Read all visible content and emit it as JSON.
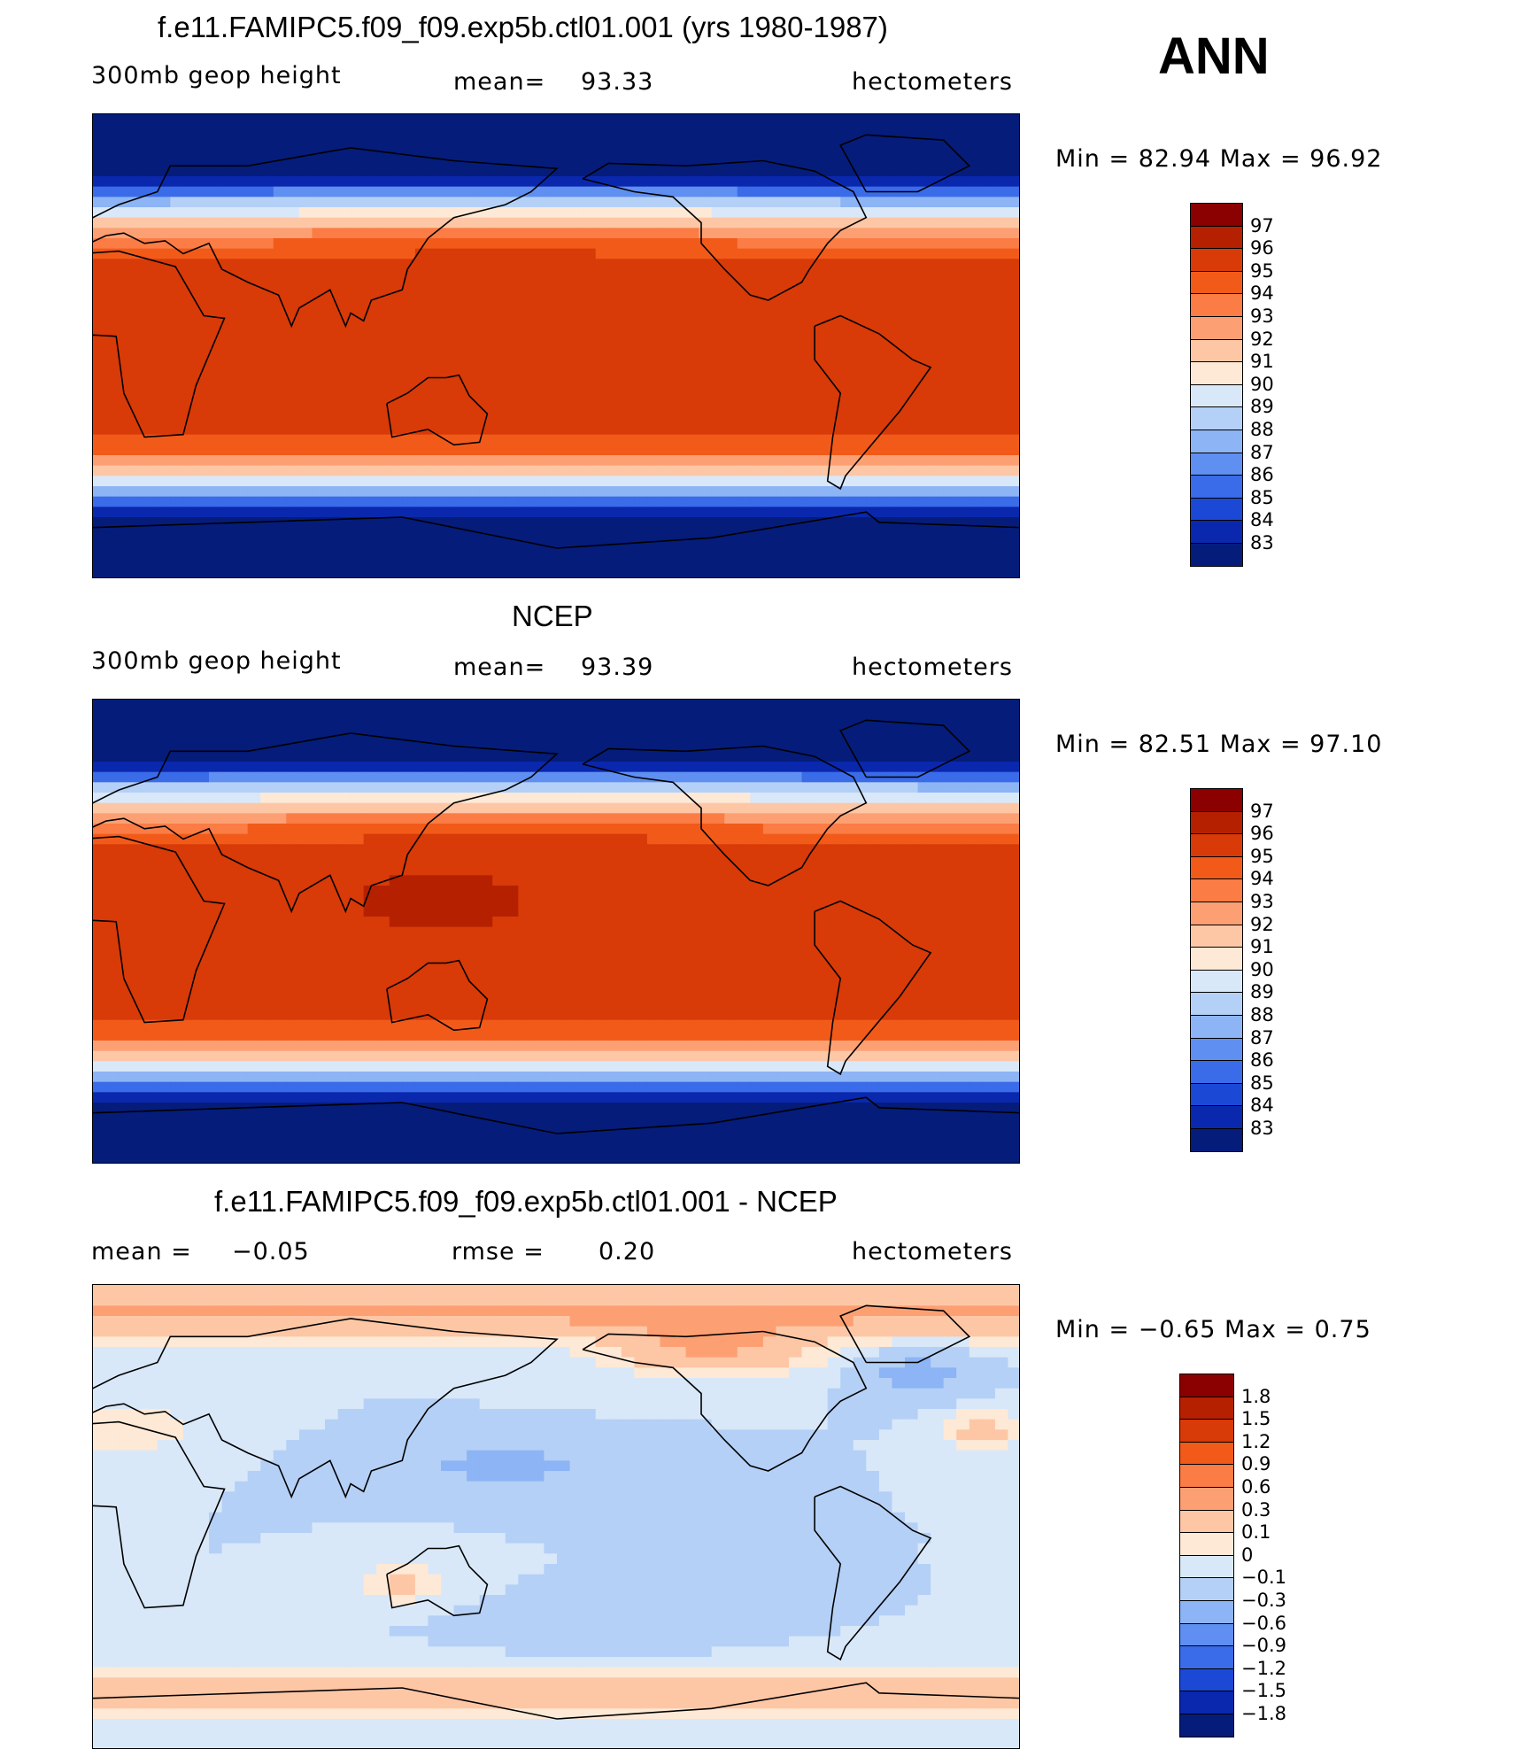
{
  "page": {
    "season": "ANN"
  },
  "chart_data": [
    {
      "type": "heatmap",
      "title": "f.e11.FAMIPC5.f09_f09.exp5b.ctl01.001 (yrs 1980-1987)",
      "variable": "300mb geop height",
      "stat_label": "mean=",
      "stat_value": "93.33",
      "units": "hectometers",
      "minmax_label": "Min =   82.94 Max =   96.92",
      "min": 82.94,
      "max": 96.92,
      "levels": [
        "97",
        "96",
        "95",
        "94",
        "93",
        "92",
        "91",
        "90",
        "89",
        "88",
        "87",
        "86",
        "85",
        "84",
        "83"
      ],
      "colors": [
        "#8b0000",
        "#b52100",
        "#d83a08",
        "#f25a1a",
        "#fb7c45",
        "#fca073",
        "#fdc7a6",
        "#fde9d6",
        "#d8e8f8",
        "#b5d0f6",
        "#8db4f4",
        "#5f8ff0",
        "#3a6be8",
        "#1c48d6",
        "#0a28ad",
        "#051c7a"
      ],
      "field": "control",
      "x_range": [
        0,
        360
      ],
      "y_range": [
        -90,
        90
      ]
    },
    {
      "type": "heatmap",
      "title": "NCEP",
      "variable": "300mb geop height",
      "stat_label": "mean=",
      "stat_value": "93.39",
      "units": "hectometers",
      "minmax_label": "Min =   82.51 Max =   97.10",
      "min": 82.51,
      "max": 97.1,
      "levels": [
        "97",
        "96",
        "95",
        "94",
        "93",
        "92",
        "91",
        "90",
        "89",
        "88",
        "87",
        "86",
        "85",
        "84",
        "83"
      ],
      "colors": [
        "#8b0000",
        "#b52100",
        "#d83a08",
        "#f25a1a",
        "#fb7c45",
        "#fca073",
        "#fdc7a6",
        "#fde9d6",
        "#d8e8f8",
        "#b5d0f6",
        "#8db4f4",
        "#5f8ff0",
        "#3a6be8",
        "#1c48d6",
        "#0a28ad",
        "#051c7a"
      ],
      "field": "obs",
      "x_range": [
        0,
        360
      ],
      "y_range": [
        -90,
        90
      ]
    },
    {
      "type": "heatmap",
      "title": "f.e11.FAMIPC5.f09_f09.exp5b.ctl01.001 - NCEP",
      "left_stat_label": "mean =",
      "left_stat_value": "−0.05",
      "stat_label": "rmse =",
      "stat_value": "0.20",
      "units": "hectometers",
      "minmax_label": "Min =  −0.65 Max =    0.75",
      "min": -0.65,
      "max": 0.75,
      "levels": [
        "1.8",
        "1.5",
        "1.2",
        "0.9",
        "0.6",
        "0.3",
        "0.1",
        "0",
        "−0.1",
        "−0.3",
        "−0.6",
        "−0.9",
        "−1.2",
        "−1.5",
        "−1.8"
      ],
      "colors": [
        "#8b0000",
        "#b52100",
        "#d83a08",
        "#f25a1a",
        "#fb7c45",
        "#fca073",
        "#fdc7a6",
        "#fde9d6",
        "#d8e8f8",
        "#b5d0f6",
        "#8db4f4",
        "#5f8ff0",
        "#3a6be8",
        "#1c48d6",
        "#0a28ad",
        "#051c7a"
      ],
      "field": "diff",
      "x_range": [
        0,
        360
      ],
      "y_range": [
        -90,
        90
      ]
    }
  ]
}
